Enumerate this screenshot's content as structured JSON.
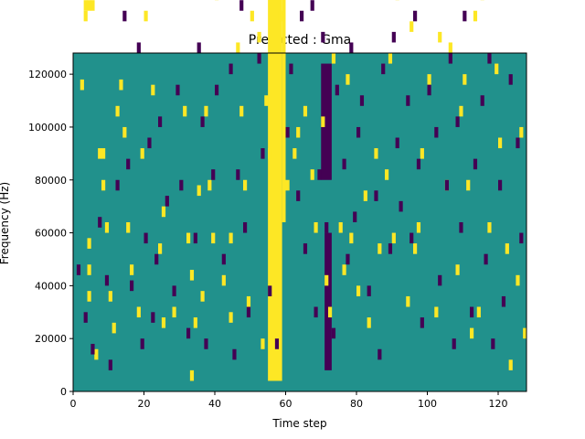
{
  "chart_data": {
    "type": "heatmap",
    "title": "Predicted : Gma",
    "xlabel": "Time step",
    "ylabel": "Frequency (Hz)",
    "xlim": [
      0,
      128
    ],
    "ylim": [
      0,
      128000
    ],
    "x_ticks": [
      0,
      20,
      40,
      60,
      80,
      100,
      120
    ],
    "y_ticks": [
      0,
      20000,
      40000,
      60000,
      80000,
      100000,
      120000
    ],
    "x_tick_labels": [
      "0",
      "20",
      "40",
      "60",
      "80",
      "100",
      "120"
    ],
    "y_tick_labels": [
      "0",
      "20000",
      "40000",
      "60000",
      "80000",
      "100000",
      "120000"
    ],
    "colormap": "viridis",
    "colors": {
      "background": "#21918c",
      "low": "#440154",
      "high": "#fde725",
      "axes": "#000000"
    },
    "values_description": "grid of 128 time steps x 64 frequency bins; most cells mid value, sparse high (yellow) and low (purple) cells",
    "cells_high": [
      [
        2,
        57
      ],
      [
        3,
        95
      ],
      [
        3,
        72
      ],
      [
        3,
        70
      ],
      [
        4,
        72
      ],
      [
        5,
        72
      ],
      [
        6,
        76
      ],
      [
        4,
        27
      ],
      [
        4,
        22
      ],
      [
        4,
        17
      ],
      [
        6,
        6
      ],
      [
        7,
        44
      ],
      [
        8,
        44
      ],
      [
        8,
        38
      ],
      [
        9,
        30
      ],
      [
        10,
        17
      ],
      [
        11,
        11
      ],
      [
        12,
        52
      ],
      [
        13,
        57
      ],
      [
        14,
        48
      ],
      [
        15,
        30
      ],
      [
        16,
        22
      ],
      [
        18,
        14
      ],
      [
        19,
        44
      ],
      [
        20,
        70
      ],
      [
        22,
        56
      ],
      [
        23,
        96
      ],
      [
        24,
        26
      ],
      [
        25,
        33
      ],
      [
        25,
        12
      ],
      [
        27,
        88
      ],
      [
        28,
        14
      ],
      [
        29,
        76
      ],
      [
        30,
        108
      ],
      [
        31,
        52
      ],
      [
        32,
        28
      ],
      [
        33,
        21
      ],
      [
        33,
        2
      ],
      [
        34,
        12
      ],
      [
        35,
        37
      ],
      [
        36,
        17
      ],
      [
        37,
        52
      ],
      [
        38,
        38
      ],
      [
        39,
        28
      ],
      [
        40,
        74
      ],
      [
        41,
        88
      ],
      [
        42,
        20
      ],
      [
        43,
        116
      ],
      [
        44,
        28
      ],
      [
        44,
        13
      ],
      [
        46,
        64
      ],
      [
        47,
        52
      ],
      [
        48,
        38
      ],
      [
        49,
        16
      ],
      [
        50,
        70
      ],
      [
        52,
        66
      ],
      [
        53,
        8
      ],
      [
        54,
        54
      ],
      [
        55,
        44
      ],
      [
        56,
        106
      ],
      [
        57,
        110
      ],
      [
        58,
        70
      ],
      [
        59,
        80
      ],
      [
        60,
        38
      ],
      [
        61,
        94
      ],
      [
        62,
        44
      ],
      [
        63,
        48
      ],
      [
        64,
        82
      ],
      [
        65,
        52
      ],
      [
        66,
        108
      ],
      [
        67,
        40
      ],
      [
        68,
        30
      ],
      [
        69,
        84
      ],
      [
        70,
        50
      ],
      [
        71,
        20
      ],
      [
        72,
        14
      ],
      [
        73,
        62
      ],
      [
        74,
        116
      ],
      [
        75,
        30
      ],
      [
        76,
        22
      ],
      [
        77,
        58
      ],
      [
        78,
        28
      ],
      [
        80,
        18
      ],
      [
        82,
        36
      ],
      [
        83,
        12
      ],
      [
        84,
        76
      ],
      [
        85,
        44
      ],
      [
        86,
        26
      ],
      [
        87,
        96
      ],
      [
        88,
        40
      ],
      [
        89,
        62
      ],
      [
        90,
        28
      ],
      [
        91,
        74
      ],
      [
        92,
        88
      ],
      [
        94,
        16
      ],
      [
        95,
        68
      ],
      [
        96,
        26
      ],
      [
        97,
        30
      ],
      [
        98,
        44
      ],
      [
        99,
        84
      ],
      [
        100,
        58
      ],
      [
        101,
        106
      ],
      [
        102,
        14
      ],
      [
        103,
        66
      ],
      [
        104,
        80
      ],
      [
        105,
        38
      ],
      [
        106,
        64
      ],
      [
        107,
        112
      ],
      [
        108,
        22
      ],
      [
        109,
        52
      ],
      [
        110,
        58
      ],
      [
        111,
        38
      ],
      [
        112,
        10
      ],
      [
        113,
        70
      ],
      [
        114,
        14
      ],
      [
        115,
        74
      ],
      [
        116,
        88
      ],
      [
        117,
        30
      ],
      [
        118,
        102
      ],
      [
        119,
        60
      ],
      [
        120,
        46
      ],
      [
        121,
        108
      ],
      [
        122,
        26
      ],
      [
        123,
        4
      ],
      [
        124,
        114
      ],
      [
        125,
        20
      ],
      [
        126,
        48
      ],
      [
        127,
        10
      ]
    ],
    "cells_low": [
      [
        1,
        22
      ],
      [
        3,
        13
      ],
      [
        5,
        7
      ],
      [
        7,
        31
      ],
      [
        9,
        20
      ],
      [
        10,
        4
      ],
      [
        12,
        38
      ],
      [
        14,
        70
      ],
      [
        15,
        42
      ],
      [
        16,
        19
      ],
      [
        18,
        64
      ],
      [
        19,
        8
      ],
      [
        20,
        28
      ],
      [
        21,
        46
      ],
      [
        22,
        13
      ],
      [
        23,
        24
      ],
      [
        24,
        50
      ],
      [
        25,
        116
      ],
      [
        26,
        35
      ],
      [
        27,
        102
      ],
      [
        28,
        18
      ],
      [
        29,
        56
      ],
      [
        30,
        38
      ],
      [
        31,
        76
      ],
      [
        32,
        10
      ],
      [
        33,
        88
      ],
      [
        34,
        28
      ],
      [
        35,
        64
      ],
      [
        36,
        50
      ],
      [
        37,
        8
      ],
      [
        38,
        82
      ],
      [
        39,
        40
      ],
      [
        40,
        56
      ],
      [
        42,
        24
      ],
      [
        44,
        60
      ],
      [
        45,
        6
      ],
      [
        46,
        40
      ],
      [
        47,
        72
      ],
      [
        48,
        30
      ],
      [
        49,
        14
      ],
      [
        50,
        86
      ],
      [
        52,
        62
      ],
      [
        53,
        44
      ],
      [
        54,
        116
      ],
      [
        55,
        18
      ],
      [
        57,
        8
      ],
      [
        59,
        104
      ],
      [
        60,
        48
      ],
      [
        61,
        60
      ],
      [
        62,
        112
      ],
      [
        63,
        36
      ],
      [
        64,
        70
      ],
      [
        65,
        26
      ],
      [
        66,
        100
      ],
      [
        67,
        72
      ],
      [
        68,
        14
      ],
      [
        69,
        40
      ],
      [
        70,
        66
      ],
      [
        71,
        30
      ],
      [
        72,
        88
      ],
      [
        73,
        10
      ],
      [
        74,
        56
      ],
      [
        75,
        116
      ],
      [
        76,
        42
      ],
      [
        77,
        24
      ],
      [
        78,
        64
      ],
      [
        79,
        32
      ],
      [
        80,
        48
      ],
      [
        81,
        54
      ],
      [
        82,
        76
      ],
      [
        83,
        18
      ],
      [
        85,
        36
      ],
      [
        86,
        6
      ],
      [
        87,
        60
      ],
      [
        88,
        104
      ],
      [
        89,
        26
      ],
      [
        90,
        66
      ],
      [
        91,
        46
      ],
      [
        92,
        34
      ],
      [
        93,
        78
      ],
      [
        94,
        54
      ],
      [
        95,
        28
      ],
      [
        96,
        70
      ],
      [
        97,
        42
      ],
      [
        98,
        12
      ],
      [
        100,
        56
      ],
      [
        101,
        76
      ],
      [
        102,
        48
      ],
      [
        103,
        20
      ],
      [
        104,
        96
      ],
      [
        105,
        38
      ],
      [
        106,
        62
      ],
      [
        107,
        8
      ],
      [
        108,
        50
      ],
      [
        109,
        30
      ],
      [
        110,
        70
      ],
      [
        111,
        90
      ],
      [
        112,
        14
      ],
      [
        113,
        42
      ],
      [
        114,
        102
      ],
      [
        115,
        54
      ],
      [
        116,
        24
      ],
      [
        117,
        62
      ],
      [
        118,
        8
      ],
      [
        119,
        96
      ],
      [
        120,
        38
      ],
      [
        121,
        16
      ],
      [
        122,
        114
      ],
      [
        123,
        58
      ],
      [
        124,
        84
      ],
      [
        125,
        46
      ],
      [
        126,
        28
      ],
      [
        127,
        88
      ]
    ],
    "bands_high": [
      {
        "x": [
          55,
          59
        ],
        "y": [
          2,
          108
        ]
      },
      {
        "x": [
          59,
          60
        ],
        "y": [
          32,
          90
        ]
      }
    ],
    "bands_low": [
      {
        "x": [
          70,
          73
        ],
        "y": [
          40,
          62
        ]
      },
      {
        "x": [
          71,
          73
        ],
        "y": [
          4,
          30
        ]
      }
    ]
  }
}
